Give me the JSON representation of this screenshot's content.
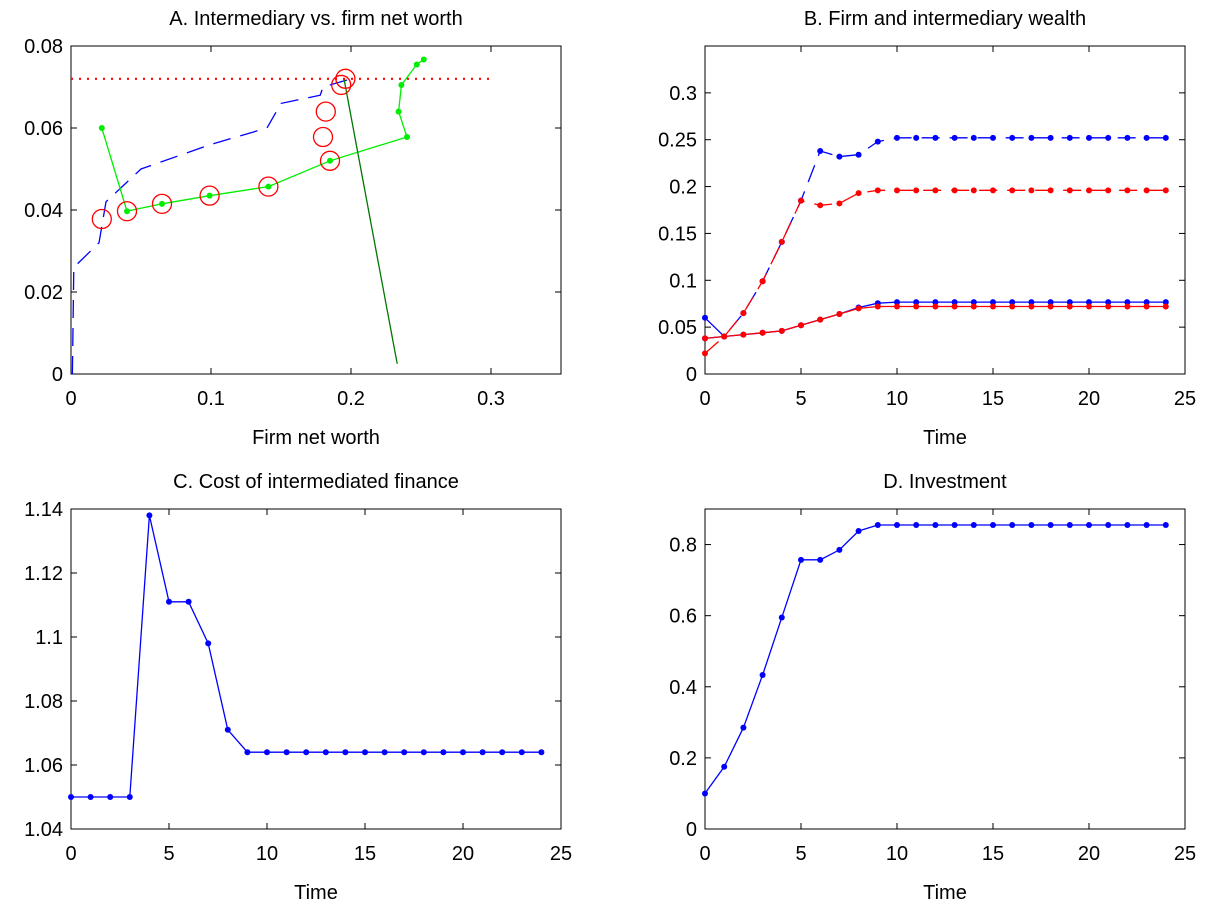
{
  "chart_data": [
    {
      "id": "A",
      "type": "line",
      "title": "A. Intermediary vs. firm net worth",
      "xlabel": "Firm net worth",
      "ylabel": "",
      "xlim": [
        0,
        0.35
      ],
      "ylim": [
        0,
        0.08
      ],
      "xticks": [
        0,
        0.1,
        0.2,
        0.3
      ],
      "yticks": [
        0,
        0.02,
        0.04,
        0.06,
        0.08
      ],
      "xticklabels": [
        "0",
        "0.1",
        "0.2",
        "0.3"
      ],
      "yticklabels": [
        "0",
        "0.02",
        "0.04",
        "0.06",
        "0.08"
      ],
      "series": [
        {
          "style": "dashed",
          "color": "#0000ff",
          "x": [
            0.001,
            0.002,
            0.02,
            0.025,
            0.05,
            0.1,
            0.14,
            0.15,
            0.178,
            0.18,
            0.2
          ],
          "y": [
            0.0,
            0.026,
            0.032,
            0.042,
            0.05,
            0.056,
            0.06,
            0.066,
            0.068,
            0.07,
            0.072
          ]
        },
        {
          "style": "solid",
          "color": "#00ee00",
          "markers": true,
          "x": [
            0.022,
            0.04,
            0.065,
            0.099,
            0.141,
            0.185,
            0.24,
            0.234,
            0.236,
            0.247,
            0.252
          ],
          "y": [
            0.06,
            0.0397,
            0.0415,
            0.0435,
            0.0457,
            0.052,
            0.0578,
            0.064,
            0.0705,
            0.0755,
            0.0767
          ]
        },
        {
          "style": "solid",
          "color": "#007700",
          "x": [
            0.233,
            0.195
          ],
          "y": [
            0.0025,
            0.072
          ]
        },
        {
          "style": "dotted",
          "color": "#ff0000",
          "x": [
            0.0,
            0.3
          ],
          "y": [
            0.072,
            0.072
          ]
        },
        {
          "style": "circles",
          "color": "#ff0000",
          "x": [
            0.022,
            0.04,
            0.065,
            0.099,
            0.141,
            0.185,
            0.18,
            0.182,
            0.193,
            0.196
          ],
          "y": [
            0.0378,
            0.0397,
            0.0415,
            0.0435,
            0.0457,
            0.052,
            0.0578,
            0.064,
            0.0705,
            0.072
          ]
        }
      ]
    },
    {
      "id": "B",
      "type": "line",
      "title": "B. Firm and intermediary wealth",
      "xlabel": "Time",
      "ylabel": "",
      "xlim": [
        0,
        25
      ],
      "ylim": [
        0,
        0.35
      ],
      "xticks": [
        0,
        5,
        10,
        15,
        20,
        25
      ],
      "yticks": [
        0,
        0.05,
        0.1,
        0.15,
        0.2,
        0.25,
        0.3
      ],
      "xticklabels": [
        "0",
        "5",
        "10",
        "15",
        "20",
        "25"
      ],
      "yticklabels": [
        "0",
        "0.05",
        "0.1",
        "0.15",
        "0.2",
        "0.25",
        "0.3"
      ],
      "series": [
        {
          "style": "dashed",
          "color": "#0000ff",
          "markers": true,
          "x": [
            0,
            1,
            2,
            3,
            4,
            5,
            6,
            7,
            8,
            9,
            10,
            11,
            12,
            13,
            14,
            15,
            16,
            17,
            18,
            19,
            20,
            21,
            22,
            23,
            24
          ],
          "y": [
            0.038,
            0.04,
            0.065,
            0.099,
            0.141,
            0.185,
            0.238,
            0.232,
            0.234,
            0.248,
            0.252,
            0.252,
            0.252,
            0.252,
            0.252,
            0.252,
            0.252,
            0.252,
            0.252,
            0.252,
            0.252,
            0.252,
            0.252,
            0.252,
            0.252
          ]
        },
        {
          "style": "dashed",
          "color": "#ff0000",
          "markers": true,
          "x": [
            0,
            1,
            2,
            3,
            4,
            5,
            6,
            7,
            8,
            9,
            10,
            11,
            12,
            13,
            14,
            15,
            16,
            17,
            18,
            19,
            20,
            21,
            22,
            23,
            24
          ],
          "y": [
            0.022,
            0.04,
            0.065,
            0.099,
            0.141,
            0.185,
            0.18,
            0.182,
            0.193,
            0.196,
            0.196,
            0.196,
            0.196,
            0.196,
            0.196,
            0.196,
            0.196,
            0.196,
            0.196,
            0.196,
            0.196,
            0.196,
            0.196,
            0.196,
            0.196
          ]
        },
        {
          "style": "solid",
          "color": "#0000ff",
          "markers": true,
          "x": [
            0,
            1,
            2,
            3,
            4,
            5,
            6,
            7,
            8,
            9,
            10,
            11,
            12,
            13,
            14,
            15,
            16,
            17,
            18,
            19,
            20,
            21,
            22,
            23,
            24
          ],
          "y": [
            0.06,
            0.04,
            0.042,
            0.044,
            0.046,
            0.052,
            0.058,
            0.064,
            0.071,
            0.0755,
            0.0767,
            0.0767,
            0.0767,
            0.0767,
            0.0767,
            0.0767,
            0.0767,
            0.0767,
            0.0767,
            0.0767,
            0.0767,
            0.0767,
            0.0767,
            0.0767,
            0.0767
          ]
        },
        {
          "style": "solid",
          "color": "#ff0000",
          "markers": true,
          "x": [
            0,
            1,
            2,
            3,
            4,
            5,
            6,
            7,
            8,
            9,
            10,
            11,
            12,
            13,
            14,
            15,
            16,
            17,
            18,
            19,
            20,
            21,
            22,
            23,
            24
          ],
          "y": [
            0.038,
            0.04,
            0.042,
            0.044,
            0.046,
            0.052,
            0.058,
            0.064,
            0.07,
            0.072,
            0.072,
            0.072,
            0.072,
            0.072,
            0.072,
            0.072,
            0.072,
            0.072,
            0.072,
            0.072,
            0.072,
            0.072,
            0.072,
            0.072,
            0.072
          ]
        }
      ]
    },
    {
      "id": "C",
      "type": "line",
      "title": "C. Cost of intermediated finance",
      "xlabel": "Time",
      "ylabel": "",
      "xlim": [
        0,
        25
      ],
      "ylim": [
        1.04,
        1.14
      ],
      "xticks": [
        0,
        5,
        10,
        15,
        20,
        25
      ],
      "yticks": [
        1.04,
        1.06,
        1.08,
        1.1,
        1.12,
        1.14
      ],
      "xticklabels": [
        "0",
        "5",
        "10",
        "15",
        "20",
        "25"
      ],
      "yticklabels": [
        "1.04",
        "1.06",
        "1.08",
        "1.1",
        "1.12",
        "1.14"
      ],
      "series": [
        {
          "style": "solid",
          "color": "#0000ff",
          "markers": true,
          "x": [
            0,
            1,
            2,
            3,
            4,
            5,
            6,
            7,
            8,
            9,
            10,
            11,
            12,
            13,
            14,
            15,
            16,
            17,
            18,
            19,
            20,
            21,
            22,
            23,
            24
          ],
          "y": [
            1.05,
            1.05,
            1.05,
            1.05,
            1.138,
            1.111,
            1.111,
            1.098,
            1.071,
            1.064,
            1.064,
            1.064,
            1.064,
            1.064,
            1.064,
            1.064,
            1.064,
            1.064,
            1.064,
            1.064,
            1.064,
            1.064,
            1.064,
            1.064,
            1.064
          ]
        }
      ]
    },
    {
      "id": "D",
      "type": "line",
      "title": "D. Investment",
      "xlabel": "Time",
      "ylabel": "",
      "xlim": [
        0,
        25
      ],
      "ylim": [
        0,
        0.9
      ],
      "xticks": [
        0,
        5,
        10,
        15,
        20,
        25
      ],
      "yticks": [
        0,
        0.2,
        0.4,
        0.6,
        0.8
      ],
      "xticklabels": [
        "0",
        "5",
        "10",
        "15",
        "20",
        "25"
      ],
      "yticklabels": [
        "0",
        "0.2",
        "0.4",
        "0.6",
        "0.8"
      ],
      "series": [
        {
          "style": "solid",
          "color": "#0000ff",
          "markers": true,
          "x": [
            0,
            1,
            2,
            3,
            4,
            5,
            6,
            7,
            8,
            9,
            10,
            11,
            12,
            13,
            14,
            15,
            16,
            17,
            18,
            19,
            20,
            21,
            22,
            23,
            24
          ],
          "y": [
            0.1,
            0.175,
            0.285,
            0.433,
            0.595,
            0.757,
            0.757,
            0.785,
            0.838,
            0.855,
            0.855,
            0.855,
            0.855,
            0.855,
            0.855,
            0.855,
            0.855,
            0.855,
            0.855,
            0.855,
            0.855,
            0.855,
            0.855,
            0.855,
            0.855
          ]
        }
      ]
    }
  ]
}
